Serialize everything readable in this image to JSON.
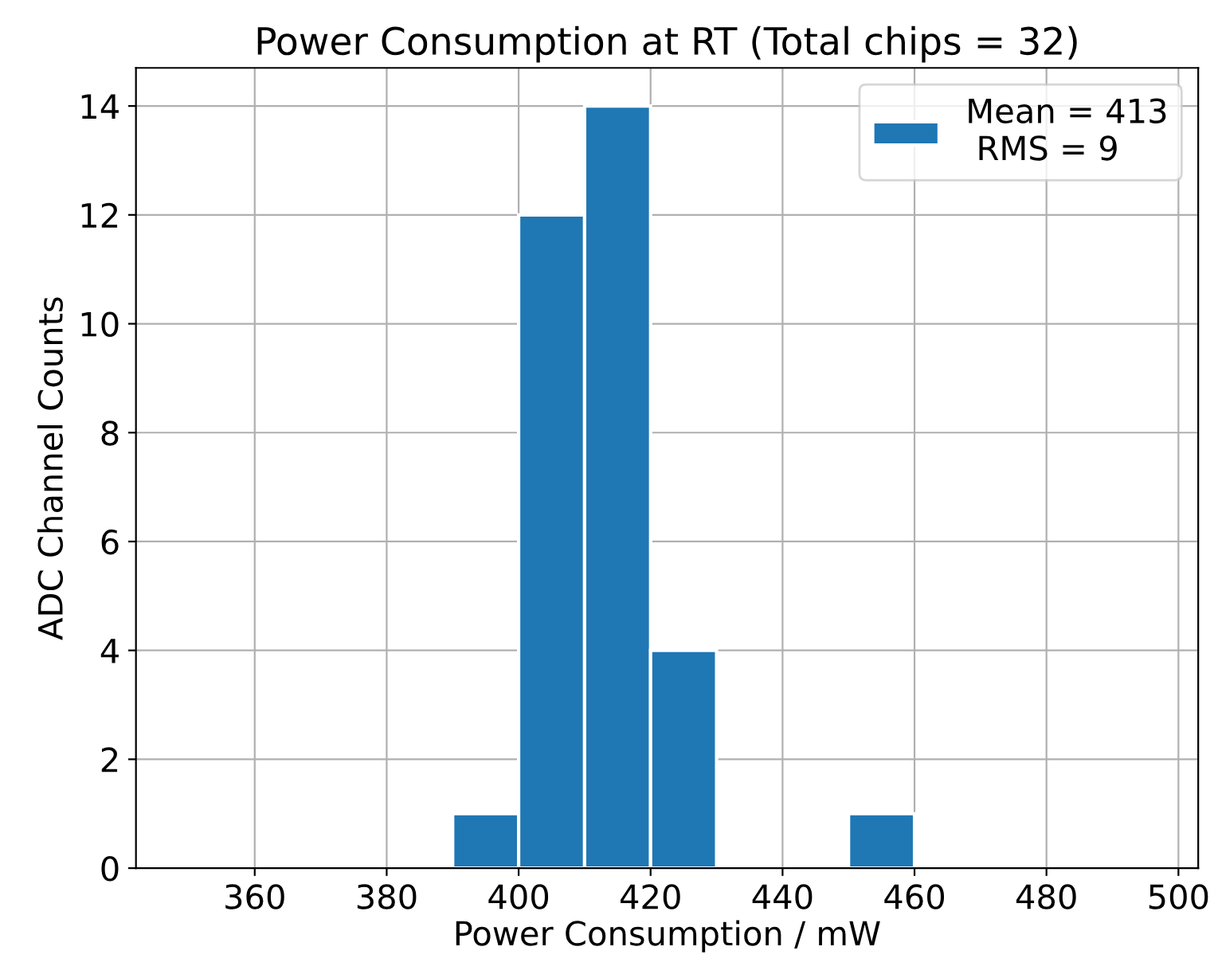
{
  "chart_data": {
    "type": "histogram",
    "title": "Power Consumption at RT (Total chips = 32)",
    "xlabel": "Power Consumption / mW",
    "ylabel": "ADC Channel Counts",
    "bins": [
      390,
      400,
      410,
      420,
      430,
      440,
      450,
      460
    ],
    "series": [
      {
        "name": "Mean = 413\n RMS = 9",
        "color": "#1f77b4",
        "values": [
          1,
          12,
          14,
          4,
          0,
          0,
          1
        ]
      }
    ],
    "xlim": [
      342,
      503
    ],
    "xticks": [
      360,
      380,
      400,
      420,
      440,
      460,
      480,
      500
    ],
    "ylim": [
      0,
      14.7
    ],
    "yticks": [
      0,
      2,
      4,
      6,
      8,
      10,
      12,
      14
    ],
    "grid": true,
    "legend": "top right"
  }
}
